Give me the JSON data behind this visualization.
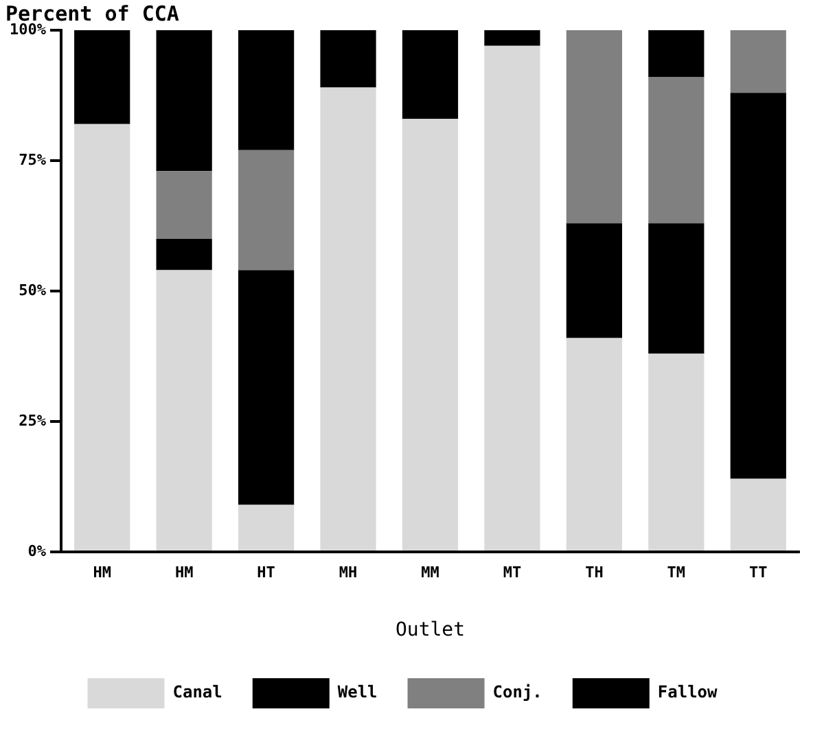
{
  "chart_data": {
    "type": "bar",
    "title": "Percent of CCA",
    "xlabel": "Outlet",
    "stacked": true,
    "legend": "bottom",
    "grid": false,
    "categories": [
      "HM",
      "HM",
      "HT",
      "MH",
      "MM",
      "MT",
      "TH",
      "TM",
      "TT"
    ],
    "series": [
      {
        "name": "Canal",
        "color": "#d9d9d9",
        "values": [
          82,
          54,
          9,
          89,
          83,
          97,
          41,
          38,
          14
        ]
      },
      {
        "name": "Well",
        "color": "#000000",
        "values": [
          0,
          6,
          45,
          0,
          0,
          0,
          22,
          25,
          74
        ]
      },
      {
        "name": "Conj.",
        "color": "#808080",
        "values": [
          0,
          13,
          23,
          0,
          0,
          0,
          37,
          28,
          12
        ]
      },
      {
        "name": "Fallow",
        "color": "#000000",
        "values": [
          18,
          27,
          23,
          11,
          17,
          3,
          0,
          9,
          0
        ]
      }
    ],
    "ylim": [
      0,
      100
    ],
    "yticks": [
      {
        "value": 0,
        "label": "0%"
      },
      {
        "value": 25,
        "label": "25%"
      },
      {
        "value": 50,
        "label": "50%"
      },
      {
        "value": 75,
        "label": "75%"
      },
      {
        "value": 100,
        "label": "100%"
      }
    ]
  }
}
